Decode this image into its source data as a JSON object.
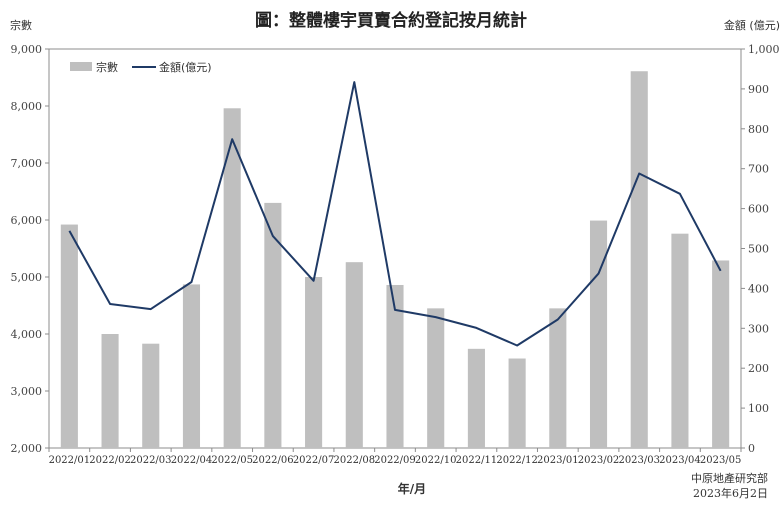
{
  "chart_data": {
    "type": "bar+line",
    "title": "圖：整體樓宇買賣合約登記按月統計",
    "xlabel": "年/月",
    "ylabel_left": "宗數",
    "ylabel_right": "金額 (億元)",
    "ylim_left": [
      2000,
      9000
    ],
    "ylim_right": [
      0,
      1000
    ],
    "yticks_left": [
      "2,000",
      "3,000",
      "4,000",
      "5,000",
      "6,000",
      "7,000",
      "8,000",
      "9,000"
    ],
    "yticks_right": [
      "0",
      "100",
      "200",
      "300",
      "400",
      "500",
      "600",
      "700",
      "800",
      "900",
      "1,000"
    ],
    "categories": [
      "2022/01",
      "2022/02",
      "2022/03",
      "2022/04",
      "2022/05",
      "2022/06",
      "2022/07",
      "2022/08",
      "2022/09",
      "2022/10",
      "2022/11",
      "2022/12",
      "2023/01",
      "2023/02",
      "2023/03",
      "2023/04",
      "2023/05"
    ],
    "series": [
      {
        "name": "宗數",
        "type": "bar",
        "axis": "left",
        "color": "#bfbfbf",
        "values": [
          5920,
          4000,
          3830,
          4870,
          7960,
          6300,
          5000,
          5260,
          4860,
          4450,
          3740,
          3570,
          4450,
          5990,
          8610,
          5760,
          5290
        ]
      },
      {
        "name": "金額(億元)",
        "type": "line",
        "axis": "right",
        "color": "#1f3a66",
        "values": [
          544,
          361,
          348,
          416,
          774,
          531,
          419,
          917,
          346,
          328,
          301,
          257,
          322,
          437,
          688,
          637,
          444
        ]
      }
    ],
    "legend_position": "top-left",
    "grid": false
  },
  "source": {
    "line1": "中原地產研究部",
    "line2": "2023年6月2日"
  }
}
